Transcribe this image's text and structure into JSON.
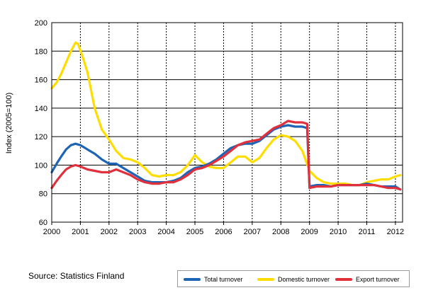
{
  "source_text": "Source: Statistics Finland",
  "chart_data": {
    "type": "line",
    "ylabel": "Index (2005=100)",
    "ylim": [
      60,
      200
    ],
    "yticks": [
      60,
      80,
      100,
      120,
      140,
      160,
      180,
      200
    ],
    "xlim": [
      2000,
      2012.25
    ],
    "xticks": [
      "2000",
      "2001",
      "2002",
      "2003",
      "2004",
      "2005",
      "2006",
      "2007",
      "2008",
      "2009",
      "2010",
      "2011",
      "2012"
    ],
    "grid": {
      "horizontal": "solid",
      "vertical": "dotted"
    },
    "legend_position": "bottom-right",
    "series": [
      {
        "name": "Domestic turnover",
        "color": "#ffdd00",
        "x": [
          2000,
          2000.17,
          2000.33,
          2000.5,
          2000.67,
          2000.83,
          2000.92,
          2001.08,
          2001.25,
          2001.5,
          2001.75,
          2002,
          2002.25,
          2002.5,
          2002.75,
          2003,
          2003.25,
          2003.5,
          2003.75,
          2004,
          2004.25,
          2004.5,
          2004.75,
          2005,
          2005.25,
          2005.5,
          2005.75,
          2006,
          2006.25,
          2006.5,
          2006.75,
          2007,
          2007.25,
          2007.5,
          2007.75,
          2008,
          2008.25,
          2008.5,
          2008.75,
          2009,
          2009.25,
          2009.5,
          2009.75,
          2010,
          2010.25,
          2010.5,
          2010.75,
          2011,
          2011.25,
          2011.5,
          2011.75,
          2012,
          2012.17
        ],
        "values": [
          154,
          158,
          164,
          172,
          180,
          186,
          185,
          176,
          165,
          140,
          125,
          118,
          110,
          105,
          104,
          102,
          98,
          93,
          92,
          93,
          93,
          95,
          100,
          107,
          102,
          99,
          98,
          98,
          102,
          106,
          106,
          102,
          105,
          112,
          118,
          121,
          120,
          117,
          110,
          96,
          91,
          88,
          87,
          87,
          87,
          86,
          86,
          88,
          89,
          90,
          90,
          92,
          93
        ]
      },
      {
        "name": "Total turnover",
        "color": "#1e64b4",
        "x": [
          2000,
          2000.17,
          2000.33,
          2000.5,
          2000.67,
          2000.83,
          2001,
          2001.17,
          2001.33,
          2001.5,
          2001.75,
          2002,
          2002.25,
          2002.5,
          2002.75,
          2003,
          2003.25,
          2003.5,
          2003.75,
          2004,
          2004.25,
          2004.5,
          2004.75,
          2005,
          2005.25,
          2005.5,
          2005.75,
          2006,
          2006.25,
          2006.5,
          2006.75,
          2007,
          2007.25,
          2007.5,
          2007.75,
          2008,
          2008.25,
          2008.5,
          2008.75,
          2008.92,
          2009,
          2009.25,
          2009.5,
          2009.75,
          2010,
          2010.25,
          2010.5,
          2010.75,
          2011,
          2011.25,
          2011.5,
          2011.75,
          2012,
          2012.17
        ],
        "values": [
          95,
          101,
          106,
          111,
          114,
          115,
          114,
          112,
          110,
          108,
          104,
          101,
          101,
          98,
          95,
          92,
          89,
          88,
          88,
          88,
          89,
          91,
          95,
          98,
          99,
          101,
          104,
          108,
          112,
          114,
          115,
          115,
          117,
          121,
          125,
          127,
          128,
          127,
          127,
          126,
          85,
          86,
          86,
          85,
          86,
          86,
          86,
          86,
          87,
          86,
          85,
          85,
          85,
          83
        ]
      },
      {
        "name": "Export turnover",
        "color": "#e0303c",
        "x": [
          2000,
          2000.17,
          2000.33,
          2000.5,
          2000.67,
          2000.83,
          2001,
          2001.25,
          2001.5,
          2001.75,
          2002,
          2002.25,
          2002.5,
          2002.75,
          2003,
          2003.25,
          2003.5,
          2003.75,
          2004,
          2004.25,
          2004.5,
          2004.75,
          2005,
          2005.25,
          2005.5,
          2005.75,
          2006,
          2006.25,
          2006.5,
          2006.75,
          2007,
          2007.25,
          2007.5,
          2007.75,
          2008,
          2008.25,
          2008.5,
          2008.75,
          2008.92,
          2009,
          2009.25,
          2009.5,
          2009.75,
          2010,
          2010.25,
          2010.5,
          2010.75,
          2011,
          2011.25,
          2011.5,
          2011.75,
          2012,
          2012.17
        ],
        "values": [
          84,
          89,
          93,
          97,
          99,
          100,
          99,
          97,
          96,
          95,
          95,
          97,
          95,
          93,
          90,
          88,
          87,
          87,
          88,
          88,
          90,
          93,
          97,
          98,
          100,
          103,
          106,
          110,
          114,
          116,
          117,
          118,
          122,
          126,
          128,
          131,
          130,
          130,
          129,
          84,
          85,
          85,
          85,
          86,
          86,
          86,
          86,
          86,
          86,
          85,
          84,
          84,
          83
        ]
      }
    ],
    "legend_order": [
      "Total turnover",
      "Domestic turnover",
      "Export turnover"
    ]
  }
}
